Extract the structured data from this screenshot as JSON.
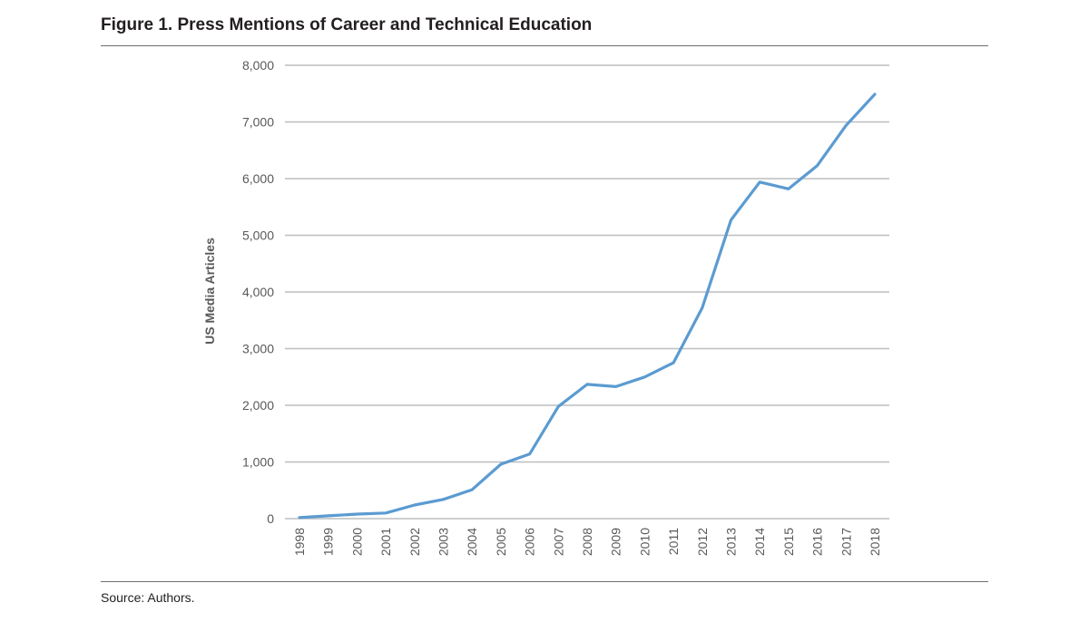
{
  "figure": {
    "title": "Figure 1. Press Mentions of Career and Technical Education",
    "source": "Source: Authors."
  },
  "chart_data": {
    "type": "line",
    "title": "Figure 1. Press Mentions of Career and Technical Education",
    "xlabel": "",
    "ylabel": "US Media Articles",
    "x": [
      "1998",
      "1999",
      "2000",
      "2001",
      "2002",
      "2003",
      "2004",
      "2005",
      "2006",
      "2007",
      "2008",
      "2009",
      "2010",
      "2011",
      "2012",
      "2013",
      "2014",
      "2015",
      "2016",
      "2017",
      "2018"
    ],
    "series": [
      {
        "values": [
          20,
          50,
          80,
          100,
          240,
          340,
          510,
          960,
          1140,
          1980,
          2370,
          2330,
          2500,
          2750,
          3720,
          5270,
          5940,
          5820,
          6230,
          6940,
          7490
        ]
      }
    ],
    "ylim": [
      0,
      8000
    ],
    "yticks": [
      0,
      1000,
      2000,
      3000,
      4000,
      5000,
      6000,
      7000,
      8000
    ],
    "ytick_labels": [
      "0",
      "1,000",
      "2,000",
      "3,000",
      "4,000",
      "5,000",
      "6,000",
      "7,000",
      "8,000"
    ],
    "line_color": "#5b9bd1",
    "grid_color": "#bcbec0",
    "grid": true,
    "legend": "none"
  }
}
